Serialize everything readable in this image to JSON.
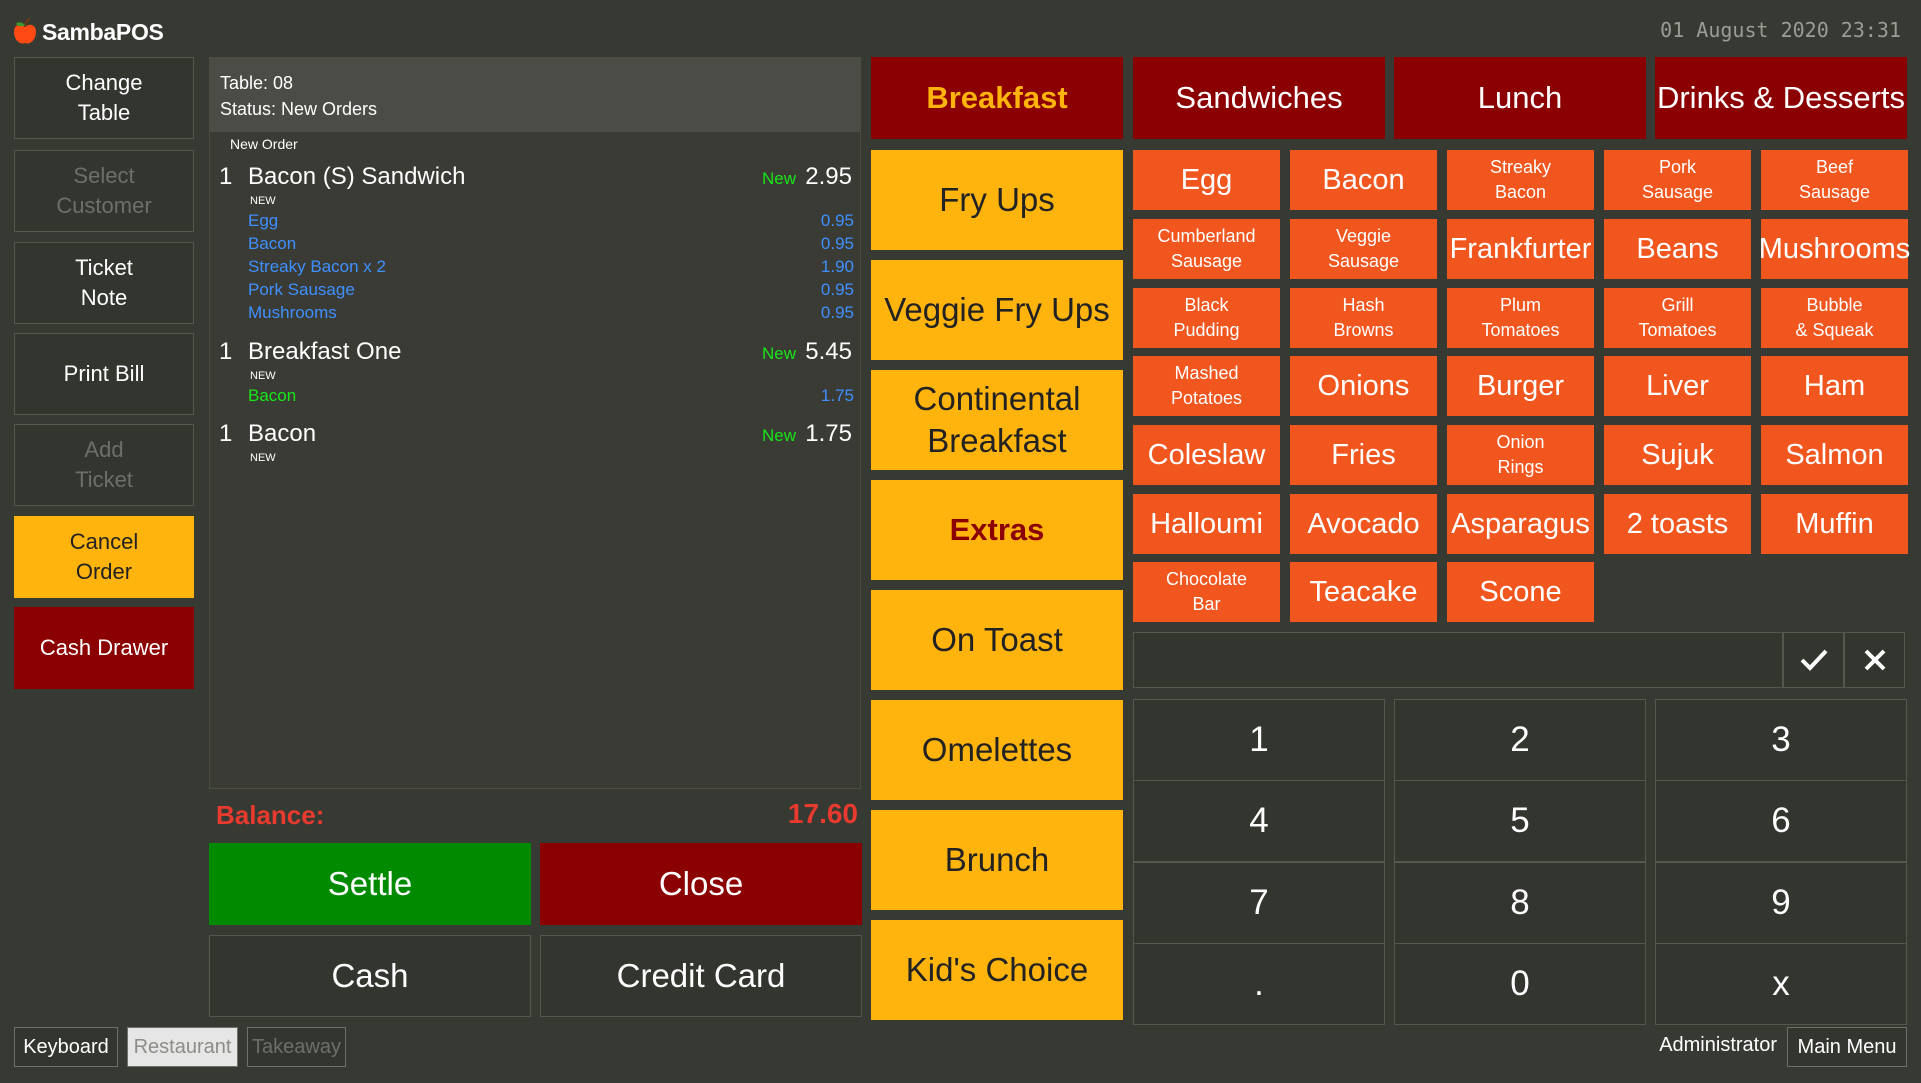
{
  "app": {
    "brand": "SambaPOS",
    "datetime": "01 August 2020 23:31"
  },
  "commands": [
    {
      "label": "Change\nTable",
      "state": "normal"
    },
    {
      "label": "Select\nCustomer",
      "state": "disabled"
    },
    {
      "label": "Ticket\nNote",
      "state": "normal"
    },
    {
      "label": "Print Bill",
      "state": "normal"
    },
    {
      "label": "Add\nTicket",
      "state": "disabled"
    },
    {
      "label": "Cancel\nOrder",
      "state": "orange"
    },
    {
      "label": "Cash Drawer",
      "state": "red"
    }
  ],
  "ticket": {
    "table": "Table: 08",
    "status": "Status: New Orders",
    "order_header": "New Order",
    "lines": [
      {
        "qty": "1",
        "name": "Bacon (S) Sandwich",
        "status": "New",
        "price": "2.95",
        "tag": "NEW",
        "modifiers": [
          {
            "name": "Egg",
            "price": "0.95"
          },
          {
            "name": "Bacon",
            "price": "0.95"
          },
          {
            "name": "Streaky Bacon x 2",
            "price": "1.90"
          },
          {
            "name": "Pork Sausage",
            "price": "0.95"
          },
          {
            "name": "Mushrooms",
            "price": "0.95"
          }
        ]
      },
      {
        "qty": "1",
        "name": "Breakfast One",
        "status": "New",
        "price": "5.45",
        "tag": "NEW",
        "modifiers": [
          {
            "name": "Bacon",
            "price": "1.75"
          }
        ]
      },
      {
        "qty": "1",
        "name": "Bacon",
        "status": "New",
        "price": "1.75",
        "tag": "NEW",
        "modifiers": []
      }
    ],
    "balance_label": "Balance:",
    "balance_value": "17.60"
  },
  "payment": {
    "settle": "Settle",
    "close": "Close",
    "cash": "Cash",
    "credit_card": "Credit Card"
  },
  "menu_tabs": [
    "Breakfast",
    "Sandwiches",
    "Lunch",
    "Drinks & Desserts"
  ],
  "categories": [
    {
      "label": "Fry Ups",
      "selected": false
    },
    {
      "label": "Veggie Fry Ups",
      "selected": false
    },
    {
      "label": "Continental\nBreakfast",
      "selected": false
    },
    {
      "label": "Extras",
      "selected": true
    },
    {
      "label": "On Toast",
      "selected": false
    },
    {
      "label": "Omelettes",
      "selected": false
    },
    {
      "label": "Brunch",
      "selected": false
    },
    {
      "label": "Kid's Choice",
      "selected": false
    }
  ],
  "products": [
    [
      "Egg",
      "Bacon",
      "Streaky\nBacon",
      "Pork\nSausage",
      "Beef\nSausage"
    ],
    [
      "Cumberland\nSausage",
      "Veggie\nSausage",
      "Frankfurter",
      "Beans",
      "Mushrooms"
    ],
    [
      "Black\nPudding",
      "Hash\nBrowns",
      "Plum\nTomatoes",
      "Grill\nTomatoes",
      "Bubble\n& Squeak"
    ],
    [
      "Mashed\nPotatoes",
      "Onions",
      "Burger",
      "Liver",
      "Ham"
    ],
    [
      "Coleslaw",
      "Fries",
      "Onion\nRings",
      "Sujuk",
      "Salmon"
    ],
    [
      "Halloumi",
      "Avocado",
      "Asparagus",
      "2 toasts",
      "Muffin"
    ],
    [
      "Chocolate\nBar",
      "Teacake",
      "Scone"
    ]
  ],
  "numpad": {
    "input_value": "",
    "confirm_icon": "check-icon",
    "clear_icon": "close-icon",
    "keys": [
      "1",
      "2",
      "3",
      "4",
      "5",
      "6",
      "7",
      "8",
      "9",
      ".",
      "0",
      "x"
    ]
  },
  "footer": {
    "keyboard": "Keyboard",
    "restaurant": "Restaurant",
    "takeaway": "Takeaway",
    "user": "Administrator",
    "main_menu": "Main Menu"
  },
  "colors": {
    "background": "#373a32",
    "accent_orange": "#ffb30d",
    "product_orange": "#f0561e",
    "dark_red": "#8b0000",
    "settle_green": "#008a00",
    "status_green": "#19e619",
    "modifier_blue": "#3f90ff",
    "balance_red": "#e83a2e"
  }
}
